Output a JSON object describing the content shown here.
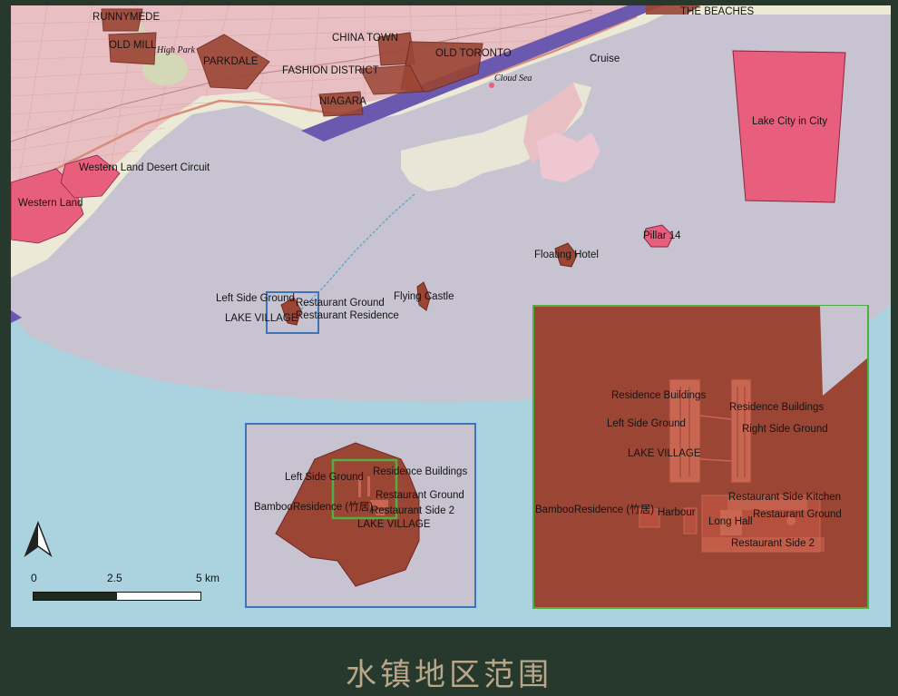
{
  "caption": "水镇地区范围",
  "colors": {
    "frame_bg": "#27392c",
    "land": "#eceae0",
    "urban": "#e8bcc1",
    "outer_water": "#abd3df",
    "project_water": "#c7c3d0",
    "zone_red": "#e85f7d",
    "zone_brown": "#9b4535",
    "channel": "#6b59b0",
    "inset_blue": "#3d73b8",
    "inset_green": "#4faf40"
  },
  "labels": {
    "runnymede": "RUNNYMEDE",
    "old_mill": "OLD MILL",
    "high_park": "High Park",
    "parkdale": "PARKDALE",
    "china_town": "CHINA TOWN",
    "fashion_district": "FASHION DISTRICT",
    "old_toronto": "OLD TORONTO",
    "niagara": "NIAGARA",
    "the_beaches": "THE BEACHES",
    "cloud_sea": "Cloud Sea",
    "cruise": "Cruise",
    "lake_city_in_city": "Lake City in City",
    "western_land_desert_circuit": "Western Land Desert Circuit",
    "western_land": "Western Land",
    "pillar_14": "Pillar 14",
    "floating_hotel": "Floating Hotel",
    "flying_castle": "Flying Castle",
    "left_side_ground": "Left Side Ground",
    "restaurant_ground": "Restaurant Ground",
    "lake_village": "LAKE VILLAGE",
    "restaurant_residence": "Restaurant Residence"
  },
  "inset_mid": {
    "left_side_ground": "Left Side Ground",
    "residence_buildings": "Residence Buildings",
    "bamboo_residence": "BambooResidence (竹居)",
    "restaurant_ground": "Restaurant Ground",
    "restaurant_side_2": "Restaurant Side 2",
    "lake_village": "LAKE VILLAGE"
  },
  "inset_right": {
    "residence_buildings_left": "Residence Buildings",
    "residence_buildings_right": "Residence Buildings",
    "left_side_ground": "Left Side Ground",
    "right_side_ground": "Right Side Ground",
    "lake_village": "LAKE VILLAGE",
    "bamboo_residence": "BambooResidence (竹居)",
    "harbour": "Harbour",
    "restaurant_side_kitchen": "Restaurant Side Kitchen",
    "long_hall": "Long Hall",
    "restaurant_ground": "Restaurant Ground",
    "restaurant_side_2": "Restaurant Side 2"
  },
  "scalebar": {
    "ticks": [
      "0",
      "2.5",
      "5 km"
    ],
    "unit": "km",
    "length_km": 5
  },
  "north_arrow_icon": "north-arrow-icon"
}
